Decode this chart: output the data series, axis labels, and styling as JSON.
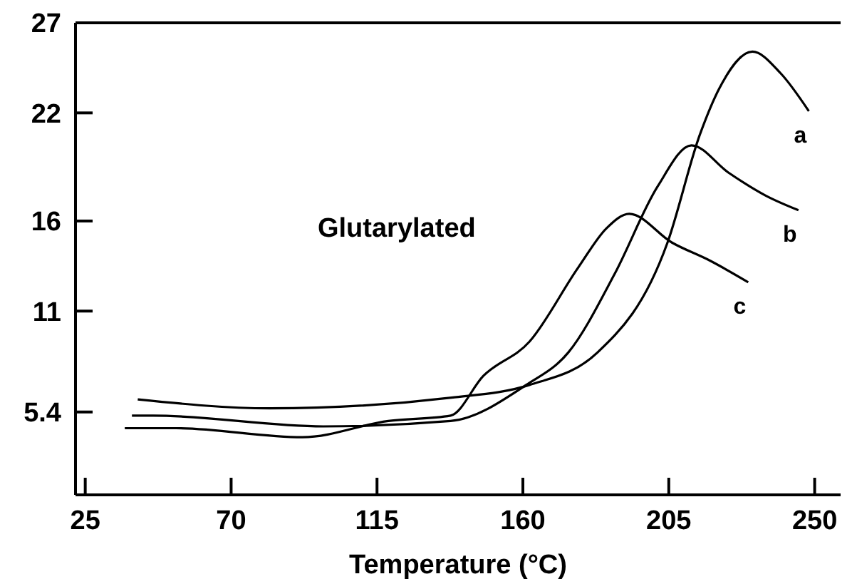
{
  "chart_data": {
    "type": "line",
    "xlabel": "Temperature (°C)",
    "annotations": [
      "Glutarylated"
    ],
    "xlim": [
      22,
      258
    ],
    "xticks": [
      25,
      70,
      115,
      160,
      205,
      250
    ],
    "ylim": [
      0.8,
      27
    ],
    "yticks": [
      5.4,
      11,
      16,
      22,
      27
    ],
    "grid": false,
    "marker": "none",
    "line_style": "solid",
    "series": [
      {
        "name": "a",
        "color": "#000000",
        "x": [
          41.2,
          82,
          138,
          162,
          183,
          204.6,
          214.6,
          220.7,
          230.8,
          239.5,
          248.2
        ],
        "values": [
          6.1,
          5.6,
          6.2,
          6.9,
          8.7,
          14.8,
          20.8,
          23.4,
          25.4,
          24.2,
          22.1
        ]
      },
      {
        "name": "b",
        "color": "#000000",
        "x": [
          39.4,
          46,
          98.4,
          137.7,
          161,
          174,
          188.4,
          201.5,
          212,
          223.3,
          235,
          245
        ],
        "values": [
          5.2,
          5.2,
          4.6,
          4.9,
          6.9,
          8.7,
          13.1,
          17.9,
          20.2,
          18.7,
          17.4,
          16.6
        ]
      },
      {
        "name": "c",
        "color": "#000000",
        "x": [
          37.2,
          53,
          92,
          118.5,
          137.7,
          147.8,
          162,
          177,
          185.8,
          192.8,
          206,
          217.7,
          229.5
        ],
        "values": [
          4.5,
          4.5,
          4.0,
          4.9,
          5.2,
          7.4,
          9.3,
          13.4,
          15.6,
          16.4,
          14.8,
          13.8,
          12.6
        ]
      }
    ]
  }
}
